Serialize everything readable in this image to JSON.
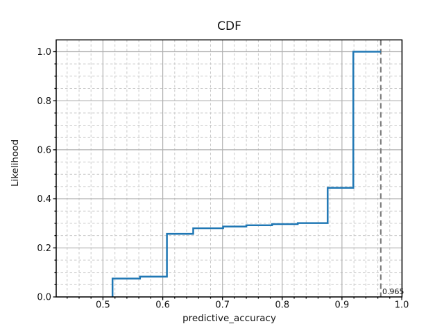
{
  "figure": {
    "background": "#ffffff"
  },
  "chart_data": {
    "type": "line",
    "subtype": "step-cdf",
    "title": "CDF",
    "xlabel": "predictive_accuracy",
    "ylabel": "Likelihood",
    "xlim": [
      0.4217,
      1.0005
    ],
    "ylim": [
      0,
      1.048
    ],
    "grid": true,
    "grid_minor": true,
    "legend_position": "none",
    "x_major_ticks": [
      0.5,
      0.6,
      0.7,
      0.8,
      0.9,
      1.0
    ],
    "x_tick_labels": [
      "0.5",
      "0.6",
      "0.7",
      "0.8",
      "0.9",
      "1.0"
    ],
    "x_minor_step": 0.02,
    "y_major_ticks": [
      0.0,
      0.2,
      0.4,
      0.6,
      0.8,
      1.0
    ],
    "y_tick_labels": [
      "0.0",
      "0.2",
      "0.4",
      "0.6",
      "0.8",
      "1.0"
    ],
    "y_minor_step": 0.05,
    "series": [
      {
        "name": "CDF",
        "color": "#1f77b4",
        "line_width": 2.5,
        "points": [
          [
            0.516,
            0.0
          ],
          [
            0.516,
            0.075
          ],
          [
            0.562,
            0.075
          ],
          [
            0.562,
            0.083
          ],
          [
            0.607,
            0.083
          ],
          [
            0.607,
            0.257
          ],
          [
            0.651,
            0.257
          ],
          [
            0.651,
            0.28
          ],
          [
            0.701,
            0.28
          ],
          [
            0.701,
            0.287
          ],
          [
            0.74,
            0.287
          ],
          [
            0.74,
            0.292
          ],
          [
            0.783,
            0.292
          ],
          [
            0.783,
            0.297
          ],
          [
            0.826,
            0.297
          ],
          [
            0.826,
            0.301
          ],
          [
            0.876,
            0.301
          ],
          [
            0.876,
            0.445
          ],
          [
            0.919,
            0.445
          ],
          [
            0.919,
            1.0
          ],
          [
            0.965,
            1.0
          ]
        ]
      }
    ],
    "vline": {
      "x": 0.965,
      "label": "0.965",
      "color": "#7f7f7f",
      "style": "dashed"
    }
  }
}
